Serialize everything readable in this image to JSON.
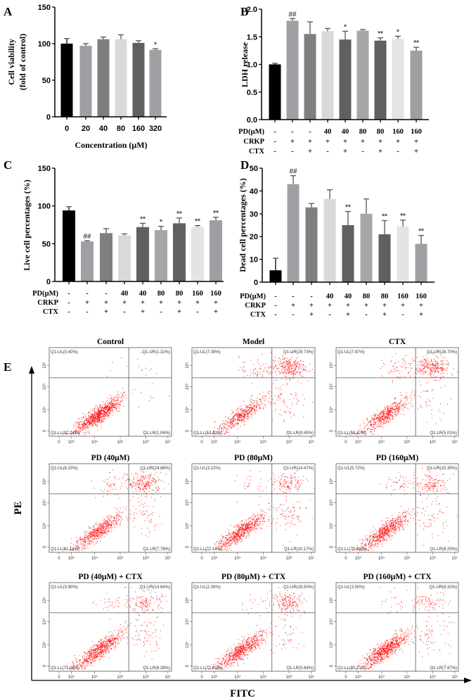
{
  "chart_data": [
    {
      "panel": "A",
      "type": "bar",
      "ylabel": [
        "Cell viability",
        "(fold of control)"
      ],
      "xlabel": "Concentration (μM)",
      "categories": [
        "0",
        "20",
        "40",
        "80",
        "160",
        "320"
      ],
      "values": [
        100,
        97,
        106,
        106,
        101,
        91.5
      ],
      "errors": [
        7,
        3,
        3,
        6,
        3,
        1.5
      ],
      "annotations": [
        "",
        "",
        "",
        "",
        "",
        "*"
      ],
      "ylim": [
        0,
        150
      ],
      "yticks": [
        "0",
        "50",
        "100",
        "150"
      ],
      "colors": [
        "#000000",
        "#9f9fa3",
        "#7f7f7f",
        "#d9d9d9",
        "#606060",
        "#a0a0a4"
      ]
    },
    {
      "panel": "B",
      "type": "bar",
      "ylabel": [
        "LDH release"
      ],
      "values": [
        1.0,
        1.79,
        1.55,
        1.6,
        1.45,
        1.61,
        1.43,
        1.46,
        1.25
      ],
      "errors": [
        0.02,
        0.04,
        0.22,
        0.05,
        0.15,
        0.02,
        0.05,
        0.05,
        0.06
      ],
      "annotations": [
        "",
        "##",
        "",
        "",
        "*",
        "",
        "**",
        "*",
        "**"
      ],
      "ylim": [
        0,
        2.0
      ],
      "yticks": [
        "0.0",
        "0.5",
        "1.0",
        "1.5",
        "2.0"
      ],
      "conditions": [
        {
          "label": "PD(μM)",
          "values": [
            "-",
            "-",
            "-",
            "40",
            "40",
            "80",
            "80",
            "160",
            "160"
          ]
        },
        {
          "label": "CRKP",
          "values": [
            "-",
            "+",
            "+",
            "+",
            "+",
            "+",
            "+",
            "+",
            "+"
          ]
        },
        {
          "label": "CTX",
          "values": [
            "-",
            "-",
            "+",
            "-",
            "+",
            "-",
            "+",
            "-",
            "+"
          ]
        }
      ],
      "colors": [
        "#000000",
        "#a0a0a4",
        "#7f7f7f",
        "#d9d9d9",
        "#606060",
        "#a6a6a6",
        "#606060",
        "#e4e4e4",
        "#9f9fa3"
      ]
    },
    {
      "panel": "C",
      "type": "bar",
      "ylabel": [
        "Live cell percentages (%)"
      ],
      "values": [
        94,
        53,
        64,
        61,
        72,
        68,
        77,
        72,
        81
      ],
      "errors": [
        5,
        1,
        6,
        2,
        5,
        5,
        7,
        2,
        4
      ],
      "annotations": [
        "",
        "##",
        "",
        "",
        "**",
        "*",
        "**",
        "**",
        "**"
      ],
      "ylim": [
        0,
        150
      ],
      "yticks": [
        "0",
        "50",
        "100",
        "150"
      ],
      "conditions": [
        {
          "label": "PD(μM)",
          "values": [
            "-",
            "-",
            "-",
            "40",
            "40",
            "80",
            "80",
            "160",
            "160"
          ]
        },
        {
          "label": "CRKP",
          "values": [
            "-",
            "+",
            "+",
            "+",
            "+",
            "+",
            "+",
            "+",
            "+"
          ]
        },
        {
          "label": "CTX",
          "values": [
            "-",
            "-",
            "+",
            "-",
            "+",
            "-",
            "+",
            "-",
            "+"
          ]
        }
      ],
      "colors": [
        "#000000",
        "#a0a0a4",
        "#7f7f7f",
        "#d9d9d9",
        "#606060",
        "#a6a6a6",
        "#606060",
        "#e4e4e4",
        "#9f9fa3"
      ]
    },
    {
      "panel": "D",
      "type": "bar",
      "ylabel": [
        "Dead cell percentages (%)"
      ],
      "values": [
        5.2,
        43,
        32.8,
        36.5,
        25,
        30,
        21,
        24.5,
        16.8
      ],
      "errors": [
        5.3,
        3.7,
        1.7,
        4,
        6,
        6.5,
        6,
        2.7,
        3.7
      ],
      "annotations": [
        "",
        "##",
        "",
        "",
        "**",
        "",
        "**",
        "**",
        "**"
      ],
      "ylim": [
        0,
        50
      ],
      "yticks": [
        "0",
        "10",
        "20",
        "30",
        "40",
        "50"
      ],
      "conditions": [
        {
          "label": "PD(μM)",
          "values": [
            "-",
            "-",
            "-",
            "40",
            "40",
            "80",
            "80",
            "160",
            "160"
          ]
        },
        {
          "label": "CRKP",
          "values": [
            "-",
            "+",
            "+",
            "+",
            "+",
            "+",
            "+",
            "+",
            "+"
          ]
        },
        {
          "label": "CTX",
          "values": [
            "-",
            "-",
            "+",
            "-",
            "+",
            "-",
            "+",
            "-",
            "+"
          ]
        }
      ],
      "colors": [
        "#000000",
        "#a0a0a4",
        "#7f7f7f",
        "#d9d9d9",
        "#606060",
        "#a6a6a6",
        "#606060",
        "#e4e4e4",
        "#9f9fa3"
      ]
    },
    {
      "panel": "E",
      "type": "scatter",
      "xlabel": "FITC",
      "ylabel": "PE",
      "xticks": [
        "0",
        "10³",
        "10⁴",
        "10⁵",
        "10⁶",
        "10⁷"
      ],
      "yticks": [
        "0",
        "10⁴",
        "10⁵",
        "10⁶"
      ],
      "point_color": "#ff0000",
      "plots": [
        {
          "title": "Control",
          "UL": "Q1-UL(0.40%)",
          "UR": "Q1-UR(1.32%)",
          "LL": "Q1-LL(97.24%)",
          "LR": "Q1-LR(1.04%)",
          "pct": [
            0.4,
            1.32,
            97.24,
            1.04
          ]
        },
        {
          "title": "Model",
          "UL": "Q1-UL(7.39%)",
          "UR": "Q1-UR(29.73%)",
          "LL": "Q1-LL(53.43%)",
          "LR": "Q1-LR(9.45%)",
          "pct": [
            7.39,
            29.73,
            53.43,
            9.45
          ]
        },
        {
          "title": "CTX",
          "UL": "Q1-UL(7.87%)",
          "UR": "Q1-UR(28.70%)",
          "LL": "Q1-LL(58.42%)",
          "LR": "Q1-LR(5.01%)",
          "pct": [
            7.87,
            28.7,
            58.42,
            5.01
          ]
        },
        {
          "title": "PD (40μM)",
          "UL": "Q1-UL(6.20%)",
          "UR": "Q1-UR(24.88%)",
          "LL": "Q1-LL(61.14%)",
          "LR": "Q1-LR(7.78%)",
          "pct": [
            6.2,
            24.88,
            61.14,
            7.78
          ]
        },
        {
          "title": "PD (80μM)",
          "UL": "Q1-UL(3.22%)",
          "UR": "Q1-UR(14.47%)",
          "LL": "Q1-LL(72.14%)",
          "LR": "Q1-LR(10.17%)",
          "pct": [
            3.22,
            14.47,
            72.14,
            10.17
          ]
        },
        {
          "title": "PD (160μM)",
          "UL": "Q1-UL(5.72%)",
          "UR": "Q1-UR(15.35%)",
          "LL": "Q1-LL(70.68%)",
          "LR": "Q1-LR(8.25%)",
          "pct": [
            5.72,
            15.35,
            70.68,
            8.25
          ]
        },
        {
          "title": "PD (40μM) + CTX",
          "UL": "Q1-UL(3.90%)",
          "UR": "Q1-UR(14.64%)",
          "LL": "Q1-LL(73.07%)",
          "LR": "Q1-LR(8.39%)",
          "pct": [
            3.9,
            14.64,
            73.07,
            8.39
          ]
        },
        {
          "title": "PD (80μM) + CTX",
          "UL": "Q1-UL(2.26%)",
          "UR": "Q1-UR(19.50%)",
          "LL": "Q1-LL(72.60%)",
          "LR": "Q1-LR(5.64%)",
          "pct": [
            2.26,
            19.5,
            72.6,
            5.64
          ]
        },
        {
          "title": "PD (160μM) + CTX",
          "UL": "Q1-UL(3.50%)",
          "UR": "Q1-UR(8.32%)",
          "LL": "Q1-LL(80.21%)",
          "LR": "Q1-LR(7.97%)",
          "pct": [
            3.5,
            8.32,
            80.21,
            7.97
          ]
        }
      ]
    }
  ]
}
